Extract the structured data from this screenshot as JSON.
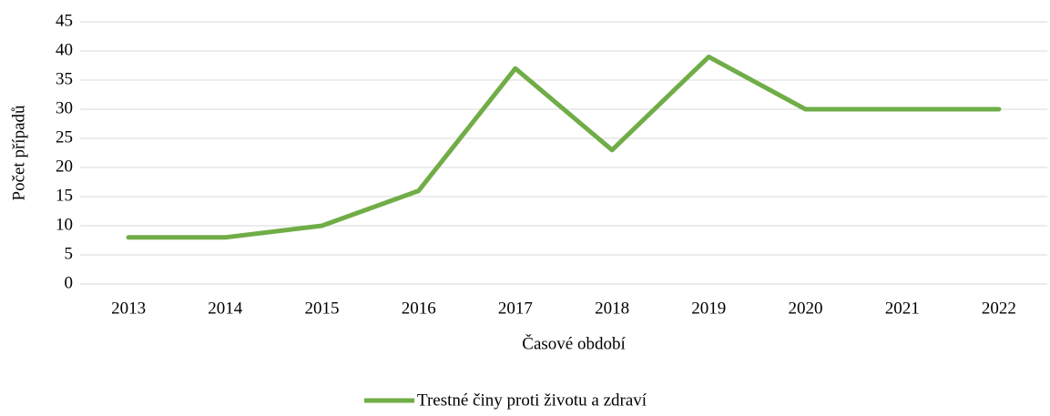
{
  "chart_data": {
    "type": "line",
    "x_label": "Časové období",
    "y_label": "Počet případů",
    "categories": [
      "2013",
      "2014",
      "2015",
      "2016",
      "2017",
      "2018",
      "2019",
      "2020",
      "2021",
      "2022"
    ],
    "series": [
      {
        "name": "Trestné činy proti životu a zdraví",
        "color": "#70ad47",
        "values": [
          8,
          8,
          10,
          16,
          37,
          23,
          39,
          30,
          30,
          30
        ]
      }
    ],
    "ylim": [
      0,
      45
    ],
    "yticks": [
      0,
      5,
      10,
      15,
      20,
      25,
      30,
      35,
      40,
      45
    ],
    "grid": true,
    "legend": "bottom"
  }
}
